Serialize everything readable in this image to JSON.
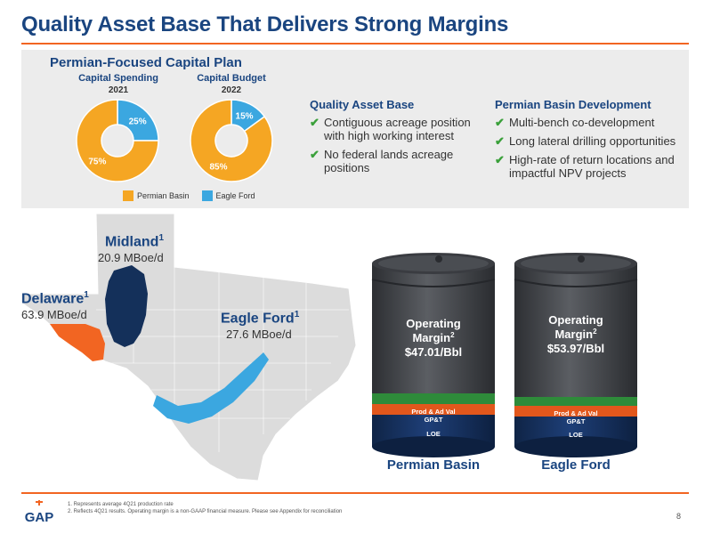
{
  "title": "Quality Asset Base That Delivers Strong Margins",
  "capital_plan": {
    "title": "Permian-Focused Capital Plan",
    "spending": {
      "label": "Capital Spending",
      "year": "2021",
      "permian_pct": 75,
      "eagle_pct": 25,
      "permian_text": "75%",
      "eagle_text": "25%"
    },
    "budget": {
      "label": "Capital Budget",
      "year": "2022",
      "permian_pct": 85,
      "eagle_pct": 15,
      "permian_text": "85%",
      "eagle_text": "15%"
    },
    "legend": [
      {
        "label": "Permian Basin",
        "color": "#f5a623"
      },
      {
        "label": "Eagle Ford",
        "color": "#3ba7e0"
      }
    ]
  },
  "quality_asset": {
    "heading": "Quality Asset Base",
    "bullets": [
      "Contiguous acreage position with high working interest",
      "No federal lands acreage positions"
    ]
  },
  "permian_dev": {
    "heading": "Permian Basin Development",
    "bullets": [
      "Multi-bench co-development",
      "Long lateral drilling opportunities",
      "High-rate of return locations and impactful NPV projects"
    ]
  },
  "map": {
    "midland": {
      "name": "Midland",
      "sup": "1",
      "value": "20.9 MBoe/d"
    },
    "delaware": {
      "name": "Delaware",
      "sup": "1",
      "value": "63.9 MBoe/d"
    },
    "eagle_ford": {
      "name": "Eagle Ford",
      "sup": "1",
      "value": "27.6 MBoe/d"
    }
  },
  "barrels": [
    {
      "name": "Permian Basin",
      "margin_line1": "Operating",
      "margin_line2": "Margin",
      "sup": "2",
      "value": "$47.01/Bbl",
      "seg_prod": "Prod & Ad Val",
      "seg_gpt": "GP&T",
      "seg_loe": "LOE"
    },
    {
      "name": "Eagle Ford",
      "margin_line1": "Operating",
      "margin_line2": "Margin",
      "sup": "2",
      "value": "$53.97/Bbl",
      "seg_prod": "Prod & Ad Val",
      "seg_gpt": "GP&T",
      "seg_loe": "LOE"
    }
  ],
  "footnotes": [
    "1.  Represents average 4Q21 production rate",
    "2.  Reflects 4Q21 results. Operating margin is a non-GAAP financial measure. Please see Appendix for reconciliation"
  ],
  "logo_text": "GAP",
  "page_number": "8",
  "colors": {
    "navy": "#1a4580",
    "orange": "#f26522",
    "permian": "#f5a623",
    "eagle": "#3ba7e0",
    "green": "#3aa03a"
  }
}
